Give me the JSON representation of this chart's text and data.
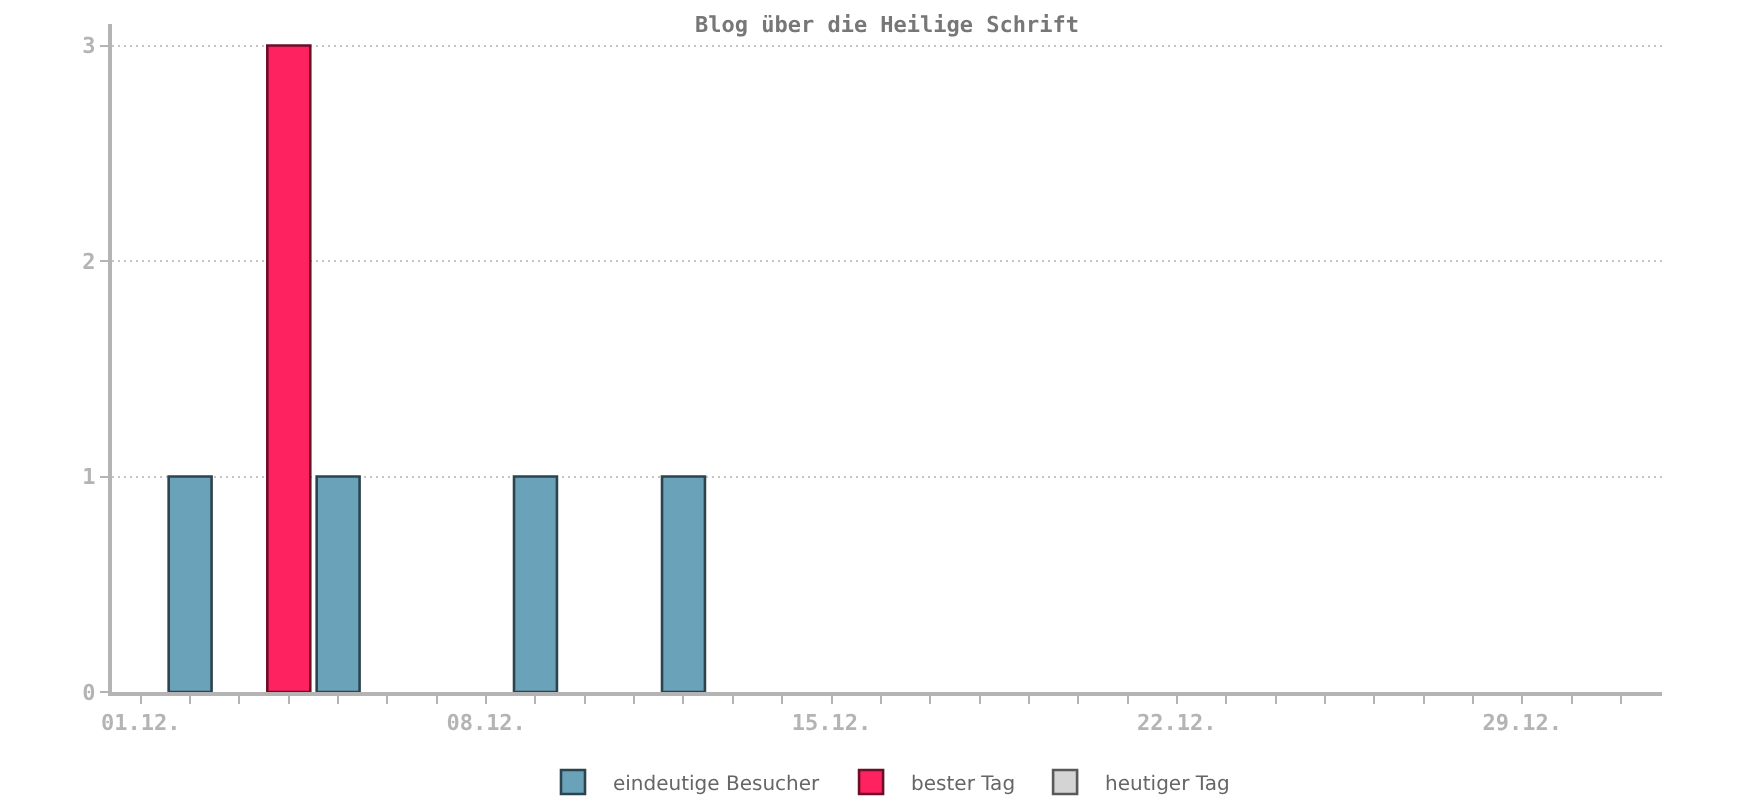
{
  "chart_data": {
    "type": "bar",
    "title": "Blog über die Heilige Schrift",
    "xlim": [
      "--11-30T10:00",
      "--12-31T20:00"
    ],
    "xticks": [
      {
        "value": "--12-01",
        "label": "01.12."
      },
      {
        "value": "--12-02",
        "label": null
      },
      {
        "value": "--12-03",
        "label": null
      },
      {
        "value": "--12-04",
        "label": null
      },
      {
        "value": "--12-05",
        "label": null
      },
      {
        "value": "--12-06",
        "label": null
      },
      {
        "value": "--12-07",
        "label": null
      },
      {
        "value": "--12-08",
        "label": "08.12."
      },
      {
        "value": "--12-09",
        "label": null
      },
      {
        "value": "--12-10",
        "label": null
      },
      {
        "value": "--12-11",
        "label": null
      },
      {
        "value": "--12-12",
        "label": null
      },
      {
        "value": "--12-13",
        "label": null
      },
      {
        "value": "--12-14",
        "label": null
      },
      {
        "value": "--12-15",
        "label": "15.12."
      },
      {
        "value": "--12-16",
        "label": null
      },
      {
        "value": "--12-17",
        "label": null
      },
      {
        "value": "--12-18",
        "label": null
      },
      {
        "value": "--12-19",
        "label": null
      },
      {
        "value": "--12-20",
        "label": null
      },
      {
        "value": "--12-21",
        "label": null
      },
      {
        "value": "--12-22",
        "label": "22.12."
      },
      {
        "value": "--12-23",
        "label": null
      },
      {
        "value": "--12-24",
        "label": null
      },
      {
        "value": "--12-25",
        "label": null
      },
      {
        "value": "--12-26",
        "label": null
      },
      {
        "value": "--12-27",
        "label": null
      },
      {
        "value": "--12-28",
        "label": null
      },
      {
        "value": "--12-29",
        "label": "29.12."
      },
      {
        "value": "--12-30",
        "label": null
      },
      {
        "value": "--12-31",
        "label": null
      }
    ],
    "ylim": [
      0,
      3.1
    ],
    "yticks": [
      0,
      1,
      2,
      3
    ],
    "grid": "y",
    "legend": "bottom",
    "series": [
      {
        "name": "eindeutige Besucher",
        "color": "#6aa2ba",
        "x": [
          "--12-02",
          "--12-05",
          "--12-09",
          "--12-12"
        ],
        "values": [
          1,
          1,
          1,
          1
        ]
      },
      {
        "name": "bester Tag",
        "color": "#ff2260",
        "x": [
          "--12-04"
        ],
        "values": [
          3
        ]
      },
      {
        "name": "heutiger Tag",
        "color": "#d4d4d4"
      }
    ]
  }
}
